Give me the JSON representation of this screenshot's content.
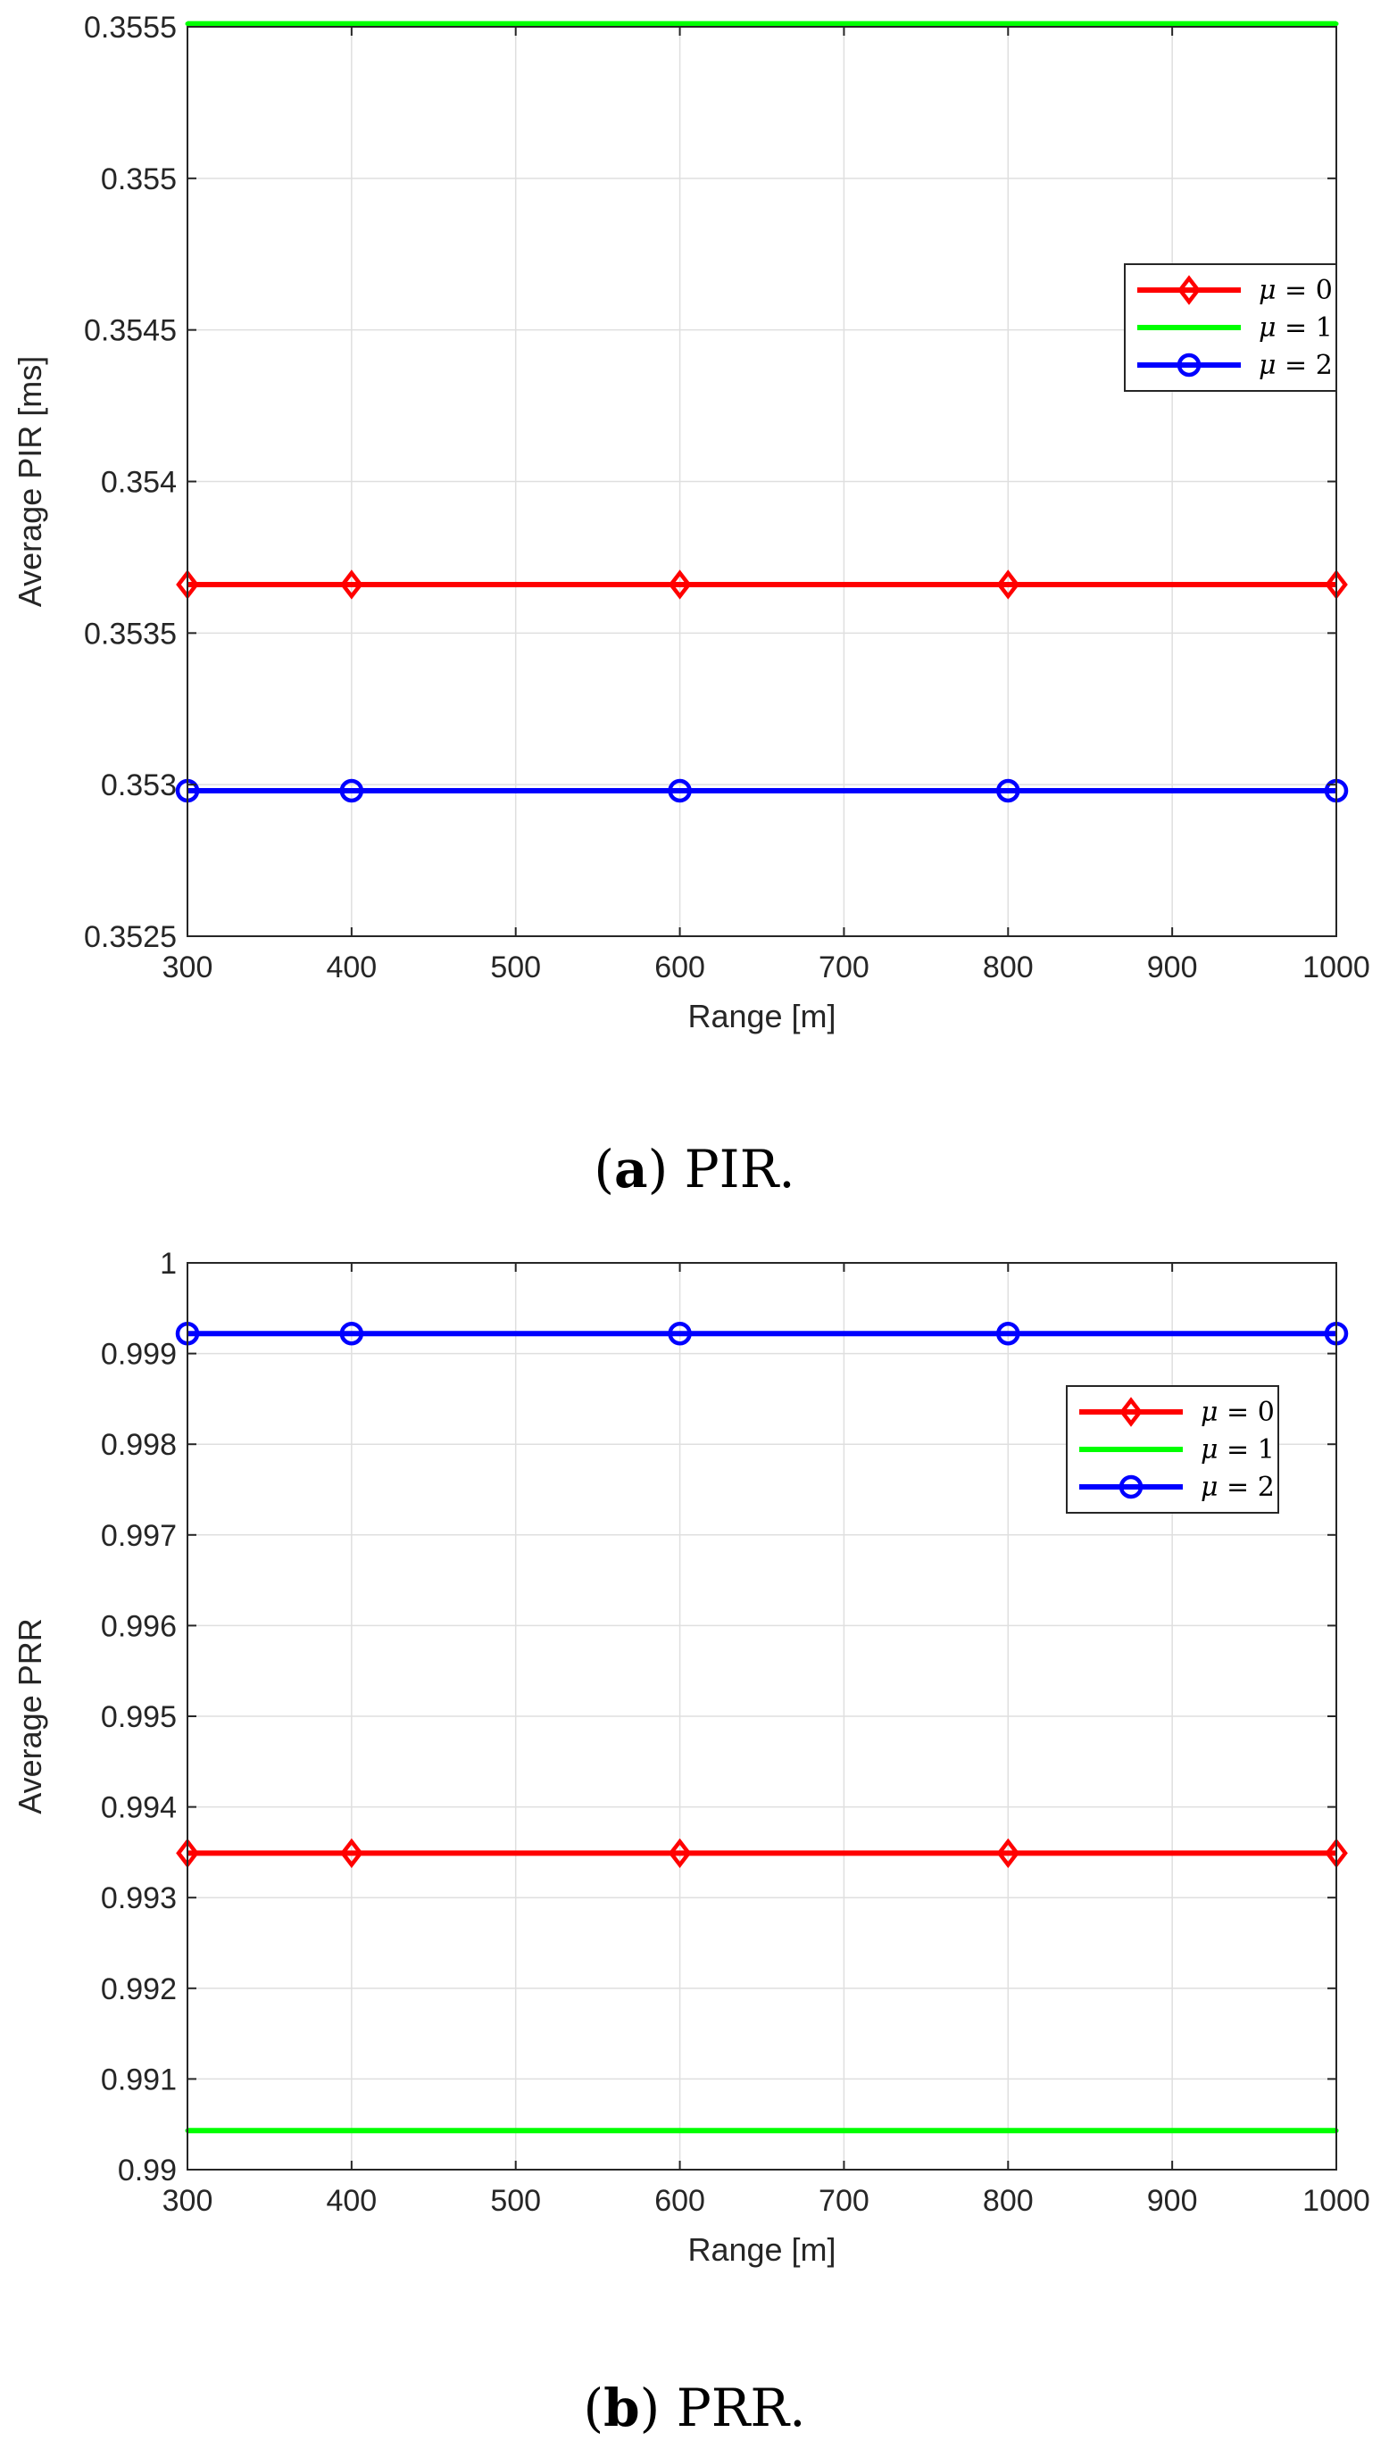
{
  "chart_data": [
    {
      "type": "line",
      "id": "a",
      "caption_label": "a",
      "caption_text": "PIR.",
      "title": "",
      "xlabel": "Range [m]",
      "ylabel": "Average PIR [ms]",
      "xlim": [
        300,
        1000
      ],
      "ylim": [
        0.3525,
        0.3555
      ],
      "xticks": [
        300,
        400,
        500,
        600,
        700,
        800,
        900,
        1000
      ],
      "xtick_labels": [
        "300",
        "400",
        "500",
        "600",
        "700",
        "800",
        "900",
        "1000"
      ],
      "yticks": [
        0.3525,
        0.353,
        0.3535,
        0.354,
        0.3545,
        0.355,
        0.3555
      ],
      "ytick_labels": [
        "0.3525",
        "0.353",
        "0.3535",
        "0.354",
        "0.3545",
        "0.355",
        "0.3555"
      ],
      "grid": true,
      "legend_position": "right",
      "x": [
        300,
        400,
        600,
        800,
        1000
      ],
      "series": [
        {
          "name": "μ = 0",
          "symbol": "μ",
          "eq": "= 0",
          "color": "#ff0000",
          "marker": "diamond",
          "values": [
            0.35366,
            0.35366,
            0.35366,
            0.35366,
            0.35366
          ]
        },
        {
          "name": "μ = 1",
          "symbol": "μ",
          "eq": "= 1",
          "color": "#00ff00",
          "marker": "point",
          "values": [
            0.35551,
            0.35551,
            0.35551,
            0.35551,
            0.35551
          ]
        },
        {
          "name": "μ = 2",
          "symbol": "μ",
          "eq": "= 2",
          "color": "#0000ff",
          "marker": "circle",
          "values": [
            0.35298,
            0.35298,
            0.35298,
            0.35298,
            0.35298
          ]
        }
      ]
    },
    {
      "type": "line",
      "id": "b",
      "caption_label": "b",
      "caption_text": "PRR.",
      "title": "",
      "xlabel": "Range [m]",
      "ylabel": "Average PRR",
      "xlim": [
        300,
        1000
      ],
      "ylim": [
        0.99,
        1.0
      ],
      "xticks": [
        300,
        400,
        500,
        600,
        700,
        800,
        900,
        1000
      ],
      "xtick_labels": [
        "300",
        "400",
        "500",
        "600",
        "700",
        "800",
        "900",
        "1000"
      ],
      "yticks": [
        0.99,
        0.991,
        0.992,
        0.993,
        0.994,
        0.995,
        0.996,
        0.997,
        0.998,
        0.999,
        1.0
      ],
      "ytick_labels": [
        "0.99",
        "0.991",
        "0.992",
        "0.993",
        "0.994",
        "0.995",
        "0.996",
        "0.997",
        "0.998",
        "0.999",
        "1"
      ],
      "grid": true,
      "legend_position": "top-right",
      "x": [
        300,
        400,
        600,
        800,
        1000
      ],
      "series": [
        {
          "name": "μ = 0",
          "symbol": "μ",
          "eq": "= 0",
          "color": "#ff0000",
          "marker": "diamond",
          "values": [
            0.99349,
            0.99349,
            0.99349,
            0.99349,
            0.99349
          ]
        },
        {
          "name": "μ = 1",
          "symbol": "μ",
          "eq": "= 1",
          "color": "#00ff00",
          "marker": "point",
          "values": [
            0.99043,
            0.99043,
            0.99043,
            0.99043,
            0.99043
          ]
        },
        {
          "name": "μ = 2",
          "symbol": "μ",
          "eq": "= 2",
          "color": "#0000ff",
          "marker": "circle",
          "values": [
            0.99922,
            0.99922,
            0.99922,
            0.99922,
            0.99922
          ]
        }
      ]
    }
  ]
}
